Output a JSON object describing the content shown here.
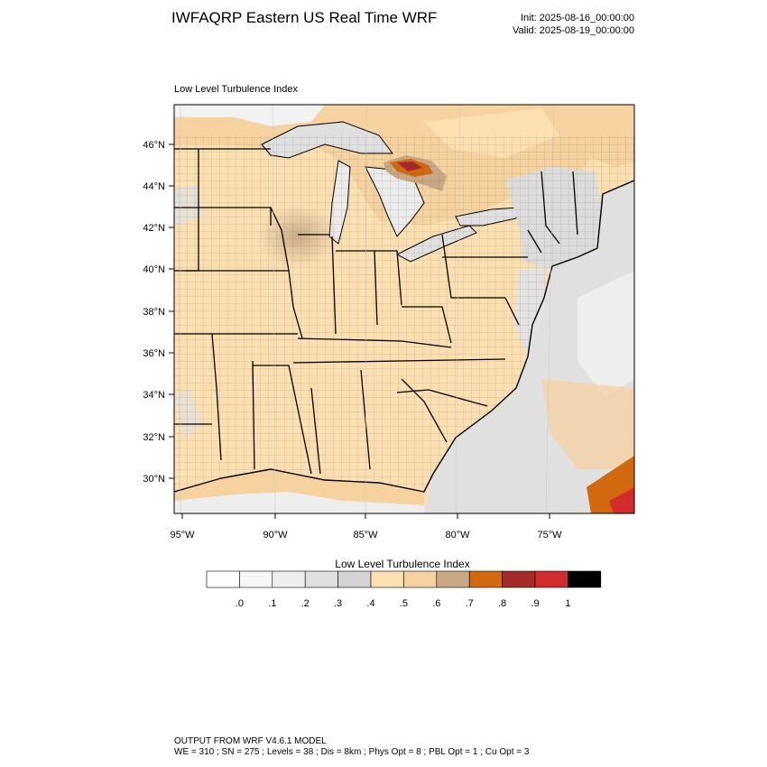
{
  "header": {
    "title": "IWFAQRP Eastern US Real Time WRF",
    "init": "Init: 2025-08-16_00:00:00",
    "valid": "Valid: 2025-08-19_00:00:00"
  },
  "map": {
    "label": "Low Level Turbulence Index",
    "lat_labels": [
      "46°N",
      "44°N",
      "42°N",
      "40°N",
      "38°N",
      "36°N",
      "34°N",
      "32°N",
      "30°N"
    ],
    "lon_labels": [
      "95°W",
      "90°W",
      "85°W",
      "80°W",
      "75°W"
    ],
    "colors": {
      "land_dominant": "#fde0b2",
      "ocean_low": "#e0e0e0",
      "lake_low": "#ebebeb",
      "hotspot_dark": "#a52a2a",
      "hotspot_red": "#d22c2c"
    }
  },
  "colorbar": {
    "title": "Low Level Turbulence Index",
    "labels": [
      ".0",
      ".1",
      ".2",
      ".3",
      ".4",
      ".5",
      ".6",
      ".7",
      ".8",
      ".9",
      "1"
    ],
    "colors": [
      "#ffffff",
      "#f7f7f7",
      "#eeeeee",
      "#e0e0e0",
      "#d3d3d3",
      "#fde0b2",
      "#f5d2a0",
      "#c9a886",
      "#d2690e",
      "#a52a2a",
      "#d22c2c",
      "#000000"
    ]
  },
  "footer": {
    "line1": "OUTPUT FROM WRF V4.6.1 MODEL",
    "line2": "WE = 310 ; SN = 275 ; Levels = 38 ; Dis = 8km ; Phys Opt = 8 ; PBL Opt = 1 ; Cu Opt = 3"
  }
}
